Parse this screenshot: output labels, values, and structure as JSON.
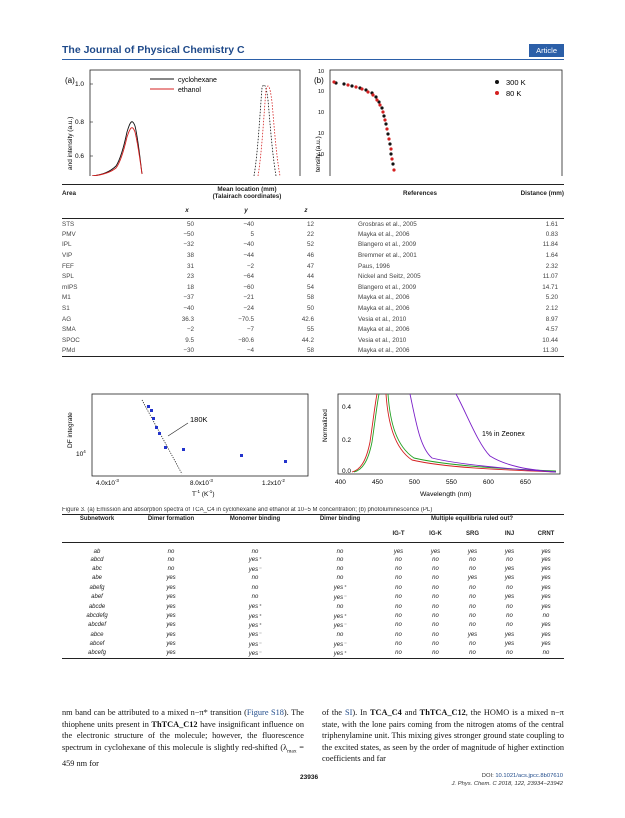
{
  "header": {
    "journal": "The Journal of Physical Chemistry C",
    "badge": "Article"
  },
  "fig_top_left": {
    "panel_label": "(a)",
    "ylabel": "and intensity (a.u.)",
    "y_ticks": [
      "1.0",
      "0.8",
      "0.6"
    ],
    "legend": [
      "cyclohexane",
      "ethanol"
    ],
    "colors": {
      "cyclohexane": "#111111",
      "ethanol": "#d42020"
    }
  },
  "fig_top_right": {
    "panel_label": "(b)",
    "ylabel": "tensity (a.u.)",
    "legend": [
      "300 K",
      "80 K"
    ],
    "colors": {
      "300K": "#111111",
      "80K": "#d42020"
    }
  },
  "table1": {
    "headers": {
      "area": "Area",
      "mean": "Mean location (mm)",
      "mean_sub": "(Talairach coordinates)",
      "refs": "References",
      "dist": "Distance (mm)",
      "x": "x",
      "y": "y",
      "z": "z"
    },
    "rows": [
      [
        "STS",
        "50",
        "−40",
        "12",
        "Grosbras et al., 2005",
        "1.61"
      ],
      [
        "PMV",
        "−50",
        "5",
        "22",
        "Mayka et al., 2006",
        "0.83"
      ],
      [
        "IPL",
        "−32",
        "−40",
        "52",
        "Blangero et al., 2009",
        "11.84"
      ],
      [
        "VIP",
        "38",
        "−44",
        "46",
        "Bremmer et al., 2001",
        "1.64"
      ],
      [
        "FEF",
        "31",
        "−2",
        "47",
        "Paus, 1996",
        "2.32"
      ],
      [
        "SPL",
        "23",
        "−64",
        "44",
        "Nickel and Seitz, 2005",
        "11.07"
      ],
      [
        "mIPS",
        "18",
        "−60",
        "54",
        "Blangero et al., 2009",
        "14.71"
      ],
      [
        "M1",
        "−37",
        "−21",
        "58",
        "Mayka et al., 2006",
        "5.20"
      ],
      [
        "S1",
        "−40",
        "−24",
        "50",
        "Mayka et al., 2006",
        "2.12"
      ],
      [
        "AG",
        "36.3",
        "−70.5",
        "42.6",
        "Vesia et al., 2010",
        "8.97"
      ],
      [
        "SMA",
        "−2",
        "−7",
        "55",
        "Mayka et al., 2006",
        "4.57"
      ],
      [
        "SPOC",
        "9.5",
        "−80.6",
        "44.2",
        "Vesia et al., 2010",
        "10.44"
      ],
      [
        "PMd",
        "−30",
        "−4",
        "58",
        "Mayka et al., 2006",
        "11.30"
      ]
    ]
  },
  "fig_mid_left": {
    "ylabel": "DF integrate",
    "y_tick": "10",
    "y_tick_exp": "4",
    "x_ticks": [
      "4.0x10",
      "8.0x10",
      "1.2x10"
    ],
    "x_tick_exp": "-3",
    "x_tick_exp_last": "-2",
    "xlabel": "T",
    "xlabel_exp": "-1",
    "xlabel_unit": " (K",
    "xlabel_unit_exp": "-1",
    "xlabel_close": ")",
    "annotation": "180K"
  },
  "fig_mid_right": {
    "ylabel": "Normalized",
    "y_ticks": [
      "0.4",
      "0.2",
      "0.0"
    ],
    "x_ticks": [
      "400",
      "450",
      "500",
      "550",
      "600",
      "650"
    ],
    "xlabel": "Wavelength (nm)",
    "annotation": "1% in Zeonex"
  },
  "cutline": "Figure 3. (a) Emission and absorption spectra of TCA_C4 in cyclohexane and ethanol at 10−5 M concentration; (b) photoluminescence (PL)",
  "table2": {
    "headers": {
      "subnetwork": "Subnetwork",
      "dimer_formation": "Dimer formation",
      "monomer_binding": "Monomer binding",
      "dimer_binding": "Dimer binding",
      "multiple": "Multiple equilibria ruled out?",
      "igt": "IG-T",
      "igk": "IG-K",
      "srg": "SRG",
      "inj": "INJ",
      "crnt": "CRNT"
    },
    "rows": [
      [
        "ab",
        "no",
        "no",
        "no",
        "yes",
        "yes",
        "yes",
        "yes",
        "yes"
      ],
      [
        "abcd",
        "no",
        "yes⁺",
        "no",
        "no",
        "no",
        "no",
        "no",
        "yes"
      ],
      [
        "abc",
        "no",
        "yes⁻",
        "no",
        "no",
        "no",
        "no",
        "yes",
        "yes"
      ],
      [
        "abe",
        "yes",
        "no",
        "no",
        "no",
        "no",
        "yes",
        "yes",
        "yes"
      ],
      [
        "abefg",
        "yes",
        "no",
        "yes⁺",
        "no",
        "no",
        "no",
        "no",
        "yes"
      ],
      [
        "abef",
        "yes",
        "no",
        "yes⁻",
        "no",
        "no",
        "no",
        "yes",
        "yes"
      ],
      [
        "abcde",
        "yes",
        "yes⁺",
        "no",
        "no",
        "no",
        "no",
        "no",
        "yes"
      ],
      [
        "abcdefg",
        "yes",
        "yes⁺",
        "yes⁺",
        "no",
        "no",
        "no",
        "no",
        "no"
      ],
      [
        "abcdef",
        "yes",
        "yes⁺",
        "yes⁻",
        "no",
        "no",
        "no",
        "no",
        "yes"
      ],
      [
        "abce",
        "yes",
        "yes⁻",
        "no",
        "no",
        "no",
        "yes",
        "yes",
        "yes"
      ],
      [
        "abcef",
        "yes",
        "yes⁻",
        "yes⁻",
        "no",
        "no",
        "no",
        "yes",
        "yes"
      ],
      [
        "abcefg",
        "yes",
        "yes⁻",
        "yes⁺",
        "no",
        "no",
        "no",
        "no",
        "no"
      ]
    ]
  },
  "left_text": {
    "p1": "nm band can be attributed to a mixed n−π* transition (",
    "p1_link": "Figure S18",
    "p2": "). The thiophene units present in ",
    "p2_bold": "ThTCA_C12",
    "p3": " have insignificant influence on the electronic structure of the molecule; however, the fluorescence spectrum in cyclohexane of this molecule is slightly red-shifted (λ",
    "p3_sub": "max",
    "p4": " = 459 nm for"
  },
  "right_text": {
    "p0": "of the ",
    "p0_link": "SI",
    "p1": "). In ",
    "b1": "TCA_C4",
    "p2": " and ",
    "b2": "ThTCA_C12",
    "p3": ", the HOMO is a mixed n−π state, with the lone pairs coming from the nitrogen atoms of the central triphenylamine unit. This mixing gives stronger ground state coupling to the excited states, as seen by the order of magnitude of higher extinction coefficients and far"
  },
  "footer": {
    "page": "23936",
    "doi_prefix": "DOI: ",
    "doi_link": "10.1021/acs.jpcc.8b07610",
    "citation": "J. Phys. Chem. C 2018, 122, 23934−23942"
  }
}
